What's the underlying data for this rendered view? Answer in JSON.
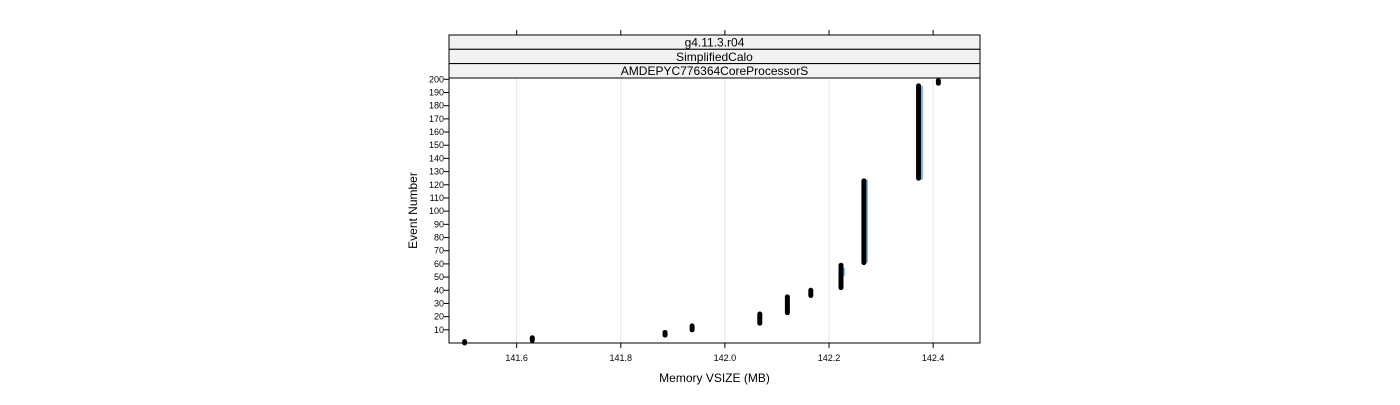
{
  "chart_data": {
    "type": "scatter",
    "strips": [
      "g4.11.3.r04",
      "SimplifiedCalo",
      "AMDEPYC776364CoreProcessorS"
    ],
    "xlabel": "Memory VSIZE (MB)",
    "ylabel": "Event Number",
    "xlim": [
      141.47,
      142.49
    ],
    "ylim": [
      0,
      201
    ],
    "x_ticks": [
      "141.6",
      "141.8",
      "142.0",
      "142.2",
      "142.4"
    ],
    "y_ticks": [
      10,
      20,
      30,
      40,
      50,
      60,
      70,
      80,
      90,
      100,
      110,
      120,
      130,
      140,
      150,
      160,
      170,
      180,
      190,
      200
    ],
    "grid": "vertical",
    "series": [
      {
        "color": "#000000",
        "segments": [
          {
            "x": 141.5,
            "y_from": 0,
            "y_to": 1
          },
          {
            "x": 141.63,
            "y_from": 2,
            "y_to": 4
          },
          {
            "x": 141.885,
            "y_from": 6,
            "y_to": 8
          },
          {
            "x": 141.937,
            "y_from": 10,
            "y_to": 13
          },
          {
            "x": 142.067,
            "y_from": 15,
            "y_to": 22
          },
          {
            "x": 142.12,
            "y_from": 23,
            "y_to": 35
          },
          {
            "x": 142.165,
            "y_from": 36,
            "y_to": 40
          },
          {
            "x": 142.223,
            "y_from": 42,
            "y_to": 59
          },
          {
            "x": 142.267,
            "y_from": 61,
            "y_to": 123
          },
          {
            "x": 142.372,
            "y_from": 125,
            "y_to": 195
          },
          {
            "x": 142.41,
            "y_from": 197,
            "y_to": 199
          }
        ]
      },
      {
        "color": "#7fbfe0",
        "segments": [
          {
            "x": 142.228,
            "y_from": 52,
            "y_to": 56
          },
          {
            "x": 142.272,
            "y_from": 62,
            "y_to": 123
          },
          {
            "x": 142.378,
            "y_from": 125,
            "y_to": 194
          }
        ]
      }
    ]
  }
}
